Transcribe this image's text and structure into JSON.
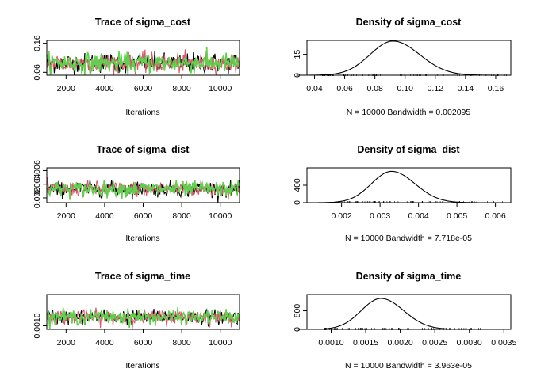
{
  "chart_data": [
    {
      "type": "line",
      "title": "Trace of sigma_cost",
      "xlabel": "Iterations",
      "xlim": [
        1000,
        11000
      ],
      "ylim": [
        0.05,
        0.17
      ],
      "xticks": [
        "2000",
        "4000",
        "6000",
        "8000",
        "10000"
      ],
      "yticks": [
        "0.06",
        "0.16"
      ],
      "x": [
        1001,
        11000
      ],
      "series": [
        {
          "color": "#000000",
          "center": 0.092,
          "spread": 0.017,
          "values_summary": "MCMC trace, 10000 draws"
        },
        {
          "color": "#df536b",
          "center": 0.092,
          "spread": 0.017,
          "values_summary": "MCMC trace, 10000 draws"
        },
        {
          "color": "#61d04f",
          "center": 0.092,
          "spread": 0.017,
          "values_summary": "MCMC trace, 10000 draws"
        }
      ],
      "grid": false
    },
    {
      "type": "line",
      "title": "Density of sigma_cost",
      "subtitle": "N = 10000   Bandwidth = 0.002095",
      "xlim": [
        0.035,
        0.17
      ],
      "ylim": [
        0,
        25
      ],
      "xticks": [
        "0.04",
        "0.06",
        "0.08",
        "0.10",
        "0.12",
        "0.14",
        "0.16"
      ],
      "yticks": [
        "0",
        "15"
      ],
      "density": {
        "mean": 0.092,
        "sd": 0.016,
        "peak": 24.5
      },
      "rug": {
        "min": 0.045,
        "max": 0.168
      },
      "grid": false
    },
    {
      "type": "line",
      "title": "Trace of sigma_dist",
      "xlabel": "Iterations",
      "xlim": [
        1000,
        11000
      ],
      "ylim": [
        0.0013,
        0.0064
      ],
      "xticks": [
        "2000",
        "4000",
        "6000",
        "8000",
        "10000"
      ],
      "yticks": [
        "0.002",
        "0.004",
        "0.006"
      ],
      "x": [
        1001,
        11000
      ],
      "series": [
        {
          "color": "#000000",
          "center": 0.0033,
          "spread": 0.00055
        },
        {
          "color": "#df536b",
          "center": 0.0033,
          "spread": 0.00055
        },
        {
          "color": "#61d04f",
          "center": 0.0033,
          "spread": 0.00055
        }
      ],
      "grid": false
    },
    {
      "type": "line",
      "title": "Density of sigma_dist",
      "subtitle": "N = 10000   Bandwidth = 7.718e-05",
      "xlim": [
        0.0011,
        0.0064
      ],
      "ylim": [
        0,
        800
      ],
      "xticks": [
        "0.002",
        "0.003",
        "0.004",
        "0.005",
        "0.006"
      ],
      "yticks": [
        "0",
        "400"
      ],
      "density": {
        "mean": 0.0033,
        "sd": 0.00055,
        "peak": 720
      },
      "rug": {
        "min": 0.0019,
        "max": 0.0062
      },
      "grid": false
    },
    {
      "type": "line",
      "title": "Trace of sigma_time",
      "xlabel": "Iterations",
      "xlim": [
        1000,
        11000
      ],
      "ylim": [
        0.0007,
        0.0036
      ],
      "xticks": [
        "2000",
        "4000",
        "6000",
        "8000",
        "10000"
      ],
      "yticks": [
        "0.0010"
      ],
      "x": [
        1001,
        11000
      ],
      "series": [
        {
          "color": "#000000",
          "center": 0.00172,
          "spread": 0.0003
        },
        {
          "color": "#df536b",
          "center": 0.00172,
          "spread": 0.0003
        },
        {
          "color": "#61d04f",
          "center": 0.00172,
          "spread": 0.0003
        }
      ],
      "grid": false
    },
    {
      "type": "line",
      "title": "Density of sigma_time",
      "subtitle": "N = 10000   Bandwidth = 3.963e-05",
      "xlim": [
        0.00065,
        0.0036
      ],
      "ylim": [
        0,
        1500
      ],
      "xticks": [
        "0.0010",
        "0.0015",
        "0.0020",
        "0.0025",
        "0.0030",
        "0.0035"
      ],
      "yticks": [
        "0",
        "800"
      ],
      "density": {
        "mean": 0.00172,
        "sd": 0.0003,
        "peak": 1330
      },
      "rug": {
        "min": 0.0009,
        "max": 0.0033
      },
      "grid": false
    }
  ]
}
